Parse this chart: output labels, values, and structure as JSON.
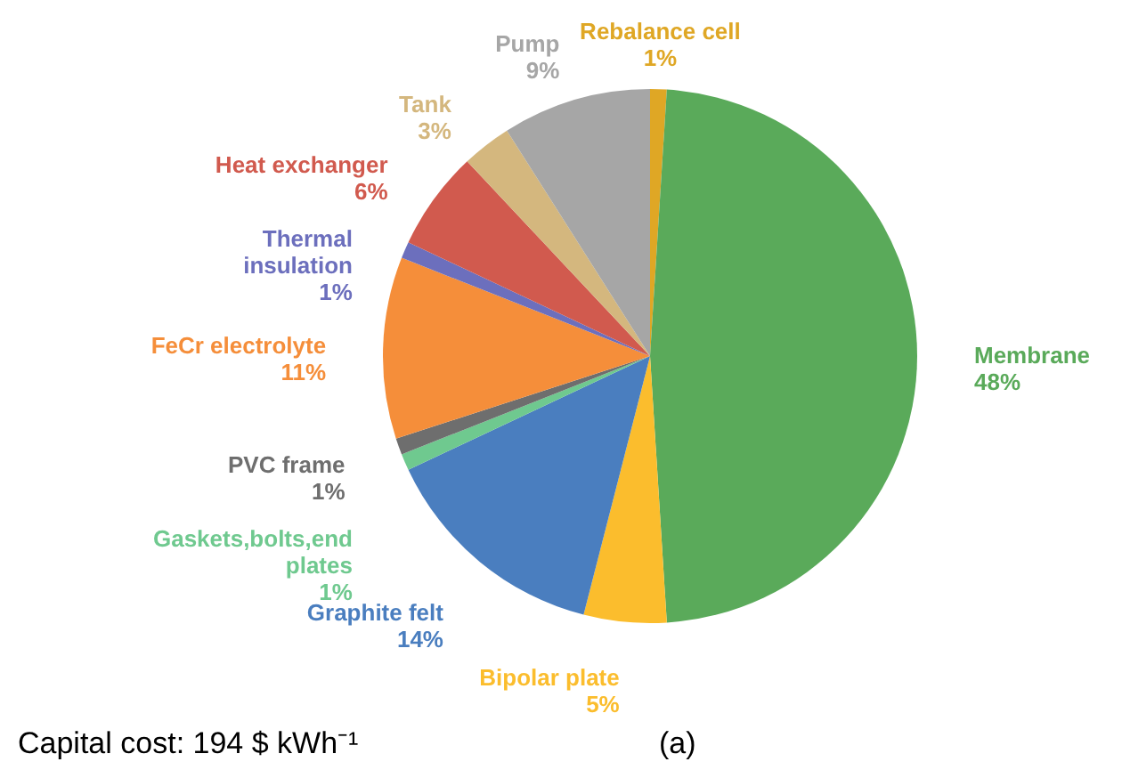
{
  "chart_data": {
    "type": "pie",
    "categories": [
      "Rebalance cell",
      "Membrane",
      "Bipolar plate",
      "Graphite felt",
      "Gaskets,bolts,end plates",
      "PVC frame",
      "FeCr electrolyte",
      "Thermal insulation",
      "Heat exchanger",
      "Tank",
      "Pump"
    ],
    "values": [
      1,
      48,
      5,
      14,
      1,
      1,
      11,
      1,
      6,
      3,
      9
    ],
    "value_labels": [
      "1%",
      "48%",
      "5%",
      "14%",
      "1%",
      "1%",
      "11%",
      "1%",
      "6%",
      "3%",
      "9%"
    ],
    "colors": [
      "#dfa725",
      "#5aaa5a",
      "#fbbd2d",
      "#4a7ebf",
      "#6fc98f",
      "#6e6e6e",
      "#f58e3a",
      "#6c6fbd",
      "#d15a4e",
      "#d4b77e",
      "#a6a6a6"
    ],
    "annotations": [
      "Capital cost: 194 $ kWh⁻¹",
      "(a)"
    ]
  }
}
